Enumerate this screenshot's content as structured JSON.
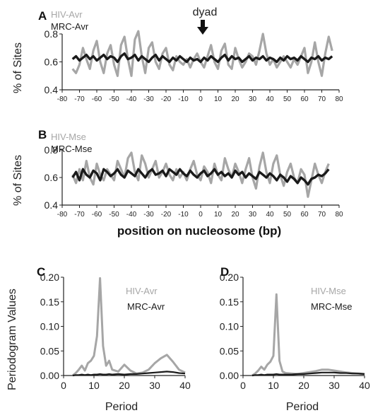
{
  "figure": {
    "dyad_label": "dyad",
    "shared_xlabel": "position on nucleosome (bp)",
    "periodogram_ylabel": "Periodogram Values",
    "colors": {
      "hiv": "#a6a6a6",
      "mrc": "#1a1a1a"
    }
  },
  "chart_data": [
    {
      "panel": "A",
      "type": "line",
      "ylabel": "% of Sites",
      "xlim": [
        -80,
        80
      ],
      "ylim": [
        0.4,
        0.8
      ],
      "xticks": [
        -80,
        -70,
        -60,
        -50,
        -40,
        -30,
        -20,
        -10,
        0,
        10,
        20,
        30,
        40,
        50,
        60,
        70,
        80
      ],
      "yticks": [
        0.4,
        0.6,
        0.8
      ],
      "legend": [
        "HIV-Avr",
        "MRC-Avr"
      ],
      "x": [
        -74,
        -72,
        -70,
        -68,
        -66,
        -64,
        -62,
        -60,
        -58,
        -56,
        -54,
        -52,
        -50,
        -48,
        -46,
        -44,
        -42,
        -40,
        -38,
        -36,
        -34,
        -32,
        -30,
        -28,
        -26,
        -24,
        -22,
        -20,
        -18,
        -16,
        -14,
        -12,
        -10,
        -8,
        -6,
        -4,
        -2,
        0,
        2,
        4,
        6,
        8,
        10,
        12,
        14,
        16,
        18,
        20,
        22,
        24,
        26,
        28,
        30,
        32,
        34,
        36,
        38,
        40,
        42,
        44,
        46,
        48,
        50,
        52,
        54,
        56,
        58,
        60,
        62,
        64,
        66,
        68,
        70,
        72,
        74,
        76
      ],
      "series": [
        {
          "name": "HIV-Avr",
          "values": [
            0.55,
            0.52,
            0.58,
            0.7,
            0.62,
            0.55,
            0.68,
            0.75,
            0.6,
            0.52,
            0.66,
            0.72,
            0.58,
            0.5,
            0.72,
            0.78,
            0.62,
            0.5,
            0.76,
            0.82,
            0.64,
            0.52,
            0.7,
            0.74,
            0.6,
            0.55,
            0.66,
            0.7,
            0.58,
            0.54,
            0.64,
            0.6,
            0.58,
            0.62,
            0.56,
            0.62,
            0.66,
            0.6,
            0.56,
            0.64,
            0.72,
            0.6,
            0.55,
            0.68,
            0.73,
            0.58,
            0.55,
            0.7,
            0.62,
            0.56,
            0.6,
            0.66,
            0.64,
            0.58,
            0.68,
            0.8,
            0.66,
            0.58,
            0.62,
            0.56,
            0.6,
            0.64,
            0.6,
            0.56,
            0.62,
            0.58,
            0.64,
            0.7,
            0.52,
            0.6,
            0.74,
            0.6,
            0.5,
            0.66,
            0.78,
            0.68
          ]
        },
        {
          "name": "MRC-Avr",
          "values": [
            0.62,
            0.64,
            0.61,
            0.63,
            0.65,
            0.62,
            0.64,
            0.61,
            0.63,
            0.65,
            0.62,
            0.64,
            0.63,
            0.6,
            0.64,
            0.66,
            0.62,
            0.63,
            0.65,
            0.61,
            0.64,
            0.62,
            0.6,
            0.63,
            0.65,
            0.61,
            0.64,
            0.62,
            0.6,
            0.63,
            0.61,
            0.64,
            0.62,
            0.6,
            0.63,
            0.61,
            0.62,
            0.6,
            0.63,
            0.61,
            0.64,
            0.62,
            0.6,
            0.63,
            0.65,
            0.61,
            0.64,
            0.62,
            0.63,
            0.6,
            0.62,
            0.64,
            0.61,
            0.63,
            0.62,
            0.64,
            0.61,
            0.63,
            0.62,
            0.6,
            0.63,
            0.61,
            0.64,
            0.62,
            0.63,
            0.61,
            0.64,
            0.62,
            0.6,
            0.63,
            0.62,
            0.64,
            0.61,
            0.63,
            0.62,
            0.64
          ]
        }
      ]
    },
    {
      "panel": "B",
      "type": "line",
      "ylabel": "% of Sites",
      "xlim": [
        -80,
        80
      ],
      "ylim": [
        0.4,
        0.8
      ],
      "xticks": [
        -80,
        -70,
        -60,
        -50,
        -40,
        -30,
        -20,
        -10,
        0,
        10,
        20,
        30,
        40,
        50,
        60,
        70,
        80
      ],
      "yticks": [
        0.4,
        0.6,
        0.8
      ],
      "legend": [
        "HIV-Mse",
        "MRC-Mse"
      ],
      "x": [
        -74,
        -72,
        -70,
        -68,
        -66,
        -64,
        -62,
        -60,
        -58,
        -56,
        -54,
        -52,
        -50,
        -48,
        -46,
        -44,
        -42,
        -40,
        -38,
        -36,
        -34,
        -32,
        -30,
        -28,
        -26,
        -24,
        -22,
        -20,
        -18,
        -16,
        -14,
        -12,
        -10,
        -8,
        -6,
        -4,
        -2,
        0,
        2,
        4,
        6,
        8,
        10,
        12,
        14,
        16,
        18,
        20,
        22,
        24,
        26,
        28,
        30,
        32,
        34,
        36,
        38,
        40,
        42,
        44,
        46,
        48,
        50,
        52,
        54,
        56,
        58,
        60,
        62,
        64,
        66,
        68,
        70,
        72,
        74
      ],
      "series": [
        {
          "name": "HIV-Mse",
          "values": [
            0.62,
            0.56,
            0.66,
            0.58,
            0.72,
            0.6,
            0.55,
            0.7,
            0.62,
            0.58,
            0.66,
            0.62,
            0.58,
            0.72,
            0.66,
            0.6,
            0.74,
            0.78,
            0.64,
            0.58,
            0.76,
            0.7,
            0.6,
            0.66,
            0.72,
            0.6,
            0.64,
            0.7,
            0.62,
            0.58,
            0.66,
            0.6,
            0.64,
            0.58,
            0.66,
            0.72,
            0.62,
            0.58,
            0.68,
            0.64,
            0.56,
            0.7,
            0.62,
            0.58,
            0.74,
            0.66,
            0.6,
            0.7,
            0.64,
            0.56,
            0.66,
            0.74,
            0.6,
            0.52,
            0.68,
            0.78,
            0.64,
            0.56,
            0.7,
            0.76,
            0.62,
            0.54,
            0.64,
            0.7,
            0.6,
            0.56,
            0.66,
            0.62,
            0.46,
            0.58,
            0.7,
            0.62,
            0.56,
            0.64,
            0.7
          ]
        },
        {
          "name": "MRC-Mse",
          "values": [
            0.6,
            0.64,
            0.58,
            0.66,
            0.62,
            0.6,
            0.65,
            0.63,
            0.58,
            0.66,
            0.64,
            0.61,
            0.63,
            0.66,
            0.62,
            0.6,
            0.65,
            0.63,
            0.61,
            0.66,
            0.63,
            0.6,
            0.64,
            0.66,
            0.62,
            0.63,
            0.65,
            0.61,
            0.66,
            0.64,
            0.62,
            0.66,
            0.63,
            0.61,
            0.65,
            0.62,
            0.6,
            0.63,
            0.65,
            0.61,
            0.63,
            0.66,
            0.62,
            0.64,
            0.61,
            0.63,
            0.6,
            0.65,
            0.62,
            0.64,
            0.6,
            0.63,
            0.61,
            0.59,
            0.64,
            0.62,
            0.6,
            0.63,
            0.61,
            0.58,
            0.62,
            0.6,
            0.57,
            0.61,
            0.59,
            0.56,
            0.6,
            0.58,
            0.55,
            0.59,
            0.6,
            0.62,
            0.61,
            0.63,
            0.66
          ]
        }
      ]
    },
    {
      "panel": "C",
      "type": "line",
      "xlabel": "Period",
      "ylabel": "Periodogram Values",
      "xlim": [
        0,
        40
      ],
      "ylim": [
        0,
        0.2
      ],
      "xticks": [
        0,
        10,
        20,
        30,
        40
      ],
      "yticks": [
        "0.00",
        "0.05",
        "0.10",
        "0.15",
        "0.20"
      ],
      "legend": [
        "HIV-Avr",
        "MRC-Avr"
      ],
      "x": [
        3,
        4,
        5,
        6,
        7,
        8,
        9,
        10,
        11,
        12,
        13,
        14,
        15,
        16,
        18,
        20,
        22,
        24,
        26,
        28,
        30,
        32,
        34,
        36,
        38,
        40
      ],
      "series": [
        {
          "name": "HIV-Avr",
          "values": [
            0.0,
            0.005,
            0.012,
            0.02,
            0.01,
            0.025,
            0.03,
            0.04,
            0.08,
            0.198,
            0.06,
            0.02,
            0.03,
            0.012,
            0.008,
            0.022,
            0.01,
            0.004,
            0.006,
            0.012,
            0.025,
            0.035,
            0.042,
            0.028,
            0.012,
            0.006
          ]
        },
        {
          "name": "MRC-Avr",
          "values": [
            0.0,
            0.001,
            0.001,
            0.002,
            0.001,
            0.002,
            0.001,
            0.002,
            0.002,
            0.003,
            0.002,
            0.002,
            0.003,
            0.002,
            0.003,
            0.002,
            0.003,
            0.003,
            0.004,
            0.005,
            0.006,
            0.007,
            0.008,
            0.007,
            0.005,
            0.004
          ]
        }
      ]
    },
    {
      "panel": "D",
      "type": "line",
      "xlabel": "Period",
      "xlim": [
        0,
        40
      ],
      "ylim": [
        0,
        0.2
      ],
      "xticks": [
        0,
        10,
        20,
        30,
        40
      ],
      "yticks": [
        "0.00",
        "0.05",
        "0.10",
        "0.15",
        "0.20"
      ],
      "legend": [
        "HIV-Mse",
        "MRC-Mse"
      ],
      "x": [
        3,
        4,
        5,
        6,
        7,
        8,
        9,
        10,
        11,
        12,
        13,
        14,
        16,
        18,
        20,
        22,
        24,
        26,
        28,
        30,
        32,
        34,
        36,
        38,
        40
      ],
      "series": [
        {
          "name": "HIV-Mse",
          "values": [
            0.0,
            0.004,
            0.01,
            0.018,
            0.012,
            0.022,
            0.028,
            0.04,
            0.165,
            0.03,
            0.008,
            0.005,
            0.004,
            0.003,
            0.005,
            0.007,
            0.009,
            0.012,
            0.012,
            0.01,
            0.008,
            0.006,
            0.005,
            0.004,
            0.003
          ]
        },
        {
          "name": "MRC-Mse",
          "values": [
            0.0,
            0.001,
            0.001,
            0.002,
            0.001,
            0.002,
            0.002,
            0.002,
            0.003,
            0.002,
            0.002,
            0.002,
            0.002,
            0.003,
            0.003,
            0.004,
            0.005,
            0.006,
            0.006,
            0.006,
            0.005,
            0.005,
            0.004,
            0.004,
            0.003
          ]
        }
      ]
    }
  ]
}
